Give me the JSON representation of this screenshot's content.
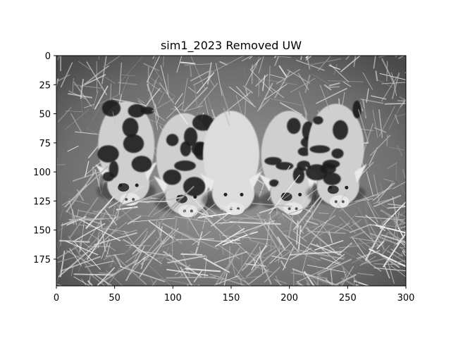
{
  "figure": {
    "title": "sim1_2023 Removed UW",
    "image_subject": "Five black-and-white spotted piglets huddled together lying on straw, grayscale photograph",
    "colormap": "gray"
  },
  "axes": {
    "x_ticks": [
      "0",
      "50",
      "100",
      "150",
      "200",
      "250",
      "300"
    ],
    "y_ticks": [
      "0",
      "25",
      "50",
      "75",
      "100",
      "125",
      "150",
      "175"
    ],
    "x_range": [
      0,
      300
    ],
    "y_range": [
      0,
      198
    ]
  },
  "piglets": [
    {
      "name": "piglet-1",
      "pattern": "spotted",
      "center_x": 60,
      "center_y": 80
    },
    {
      "name": "piglet-2",
      "pattern": "spotted",
      "center_x": 110,
      "center_y": 90
    },
    {
      "name": "piglet-3",
      "pattern": "pale",
      "center_x": 150,
      "center_y": 88
    },
    {
      "name": "piglet-4",
      "pattern": "spotted",
      "center_x": 200,
      "center_y": 88
    },
    {
      "name": "piglet-5",
      "pattern": "spotted",
      "center_x": 240,
      "center_y": 82
    }
  ]
}
